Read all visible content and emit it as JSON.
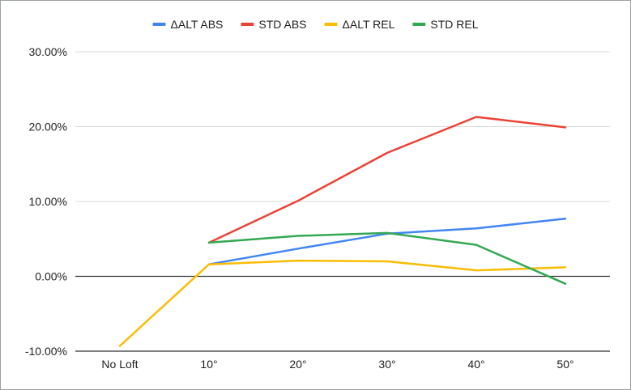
{
  "chart_data": {
    "type": "line",
    "title": "",
    "xlabel": "",
    "ylabel": "",
    "categories": [
      "No Loft",
      "10°",
      "20°",
      "30°",
      "40°",
      "50°"
    ],
    "ylim": [
      -0.1,
      0.3
    ],
    "y_ticks": [
      {
        "value": 0.3,
        "label": "30.00%"
      },
      {
        "value": 0.2,
        "label": "20.00%"
      },
      {
        "value": 0.1,
        "label": "10.00%"
      },
      {
        "value": 0.0,
        "label": "0.00%"
      },
      {
        "value": -0.1,
        "label": "-10.00%"
      }
    ],
    "grid": true,
    "legend_position": "top",
    "series": [
      {
        "name": "ΔALT ABS",
        "color": "#4285F4",
        "values": [
          null,
          0.016,
          0.037,
          0.057,
          0.064,
          0.077
        ]
      },
      {
        "name": "STD ABS",
        "color": "#EA4335",
        "values": [
          null,
          0.045,
          0.101,
          0.165,
          0.213,
          0.199
        ]
      },
      {
        "name": "ΔALT REL",
        "color": "#FBBC04",
        "values": [
          -0.093,
          0.016,
          0.021,
          0.02,
          0.008,
          0.012
        ]
      },
      {
        "name": "STD REL",
        "color": "#34A853",
        "values": [
          null,
          0.045,
          0.054,
          0.058,
          0.042,
          -0.01
        ]
      }
    ]
  }
}
